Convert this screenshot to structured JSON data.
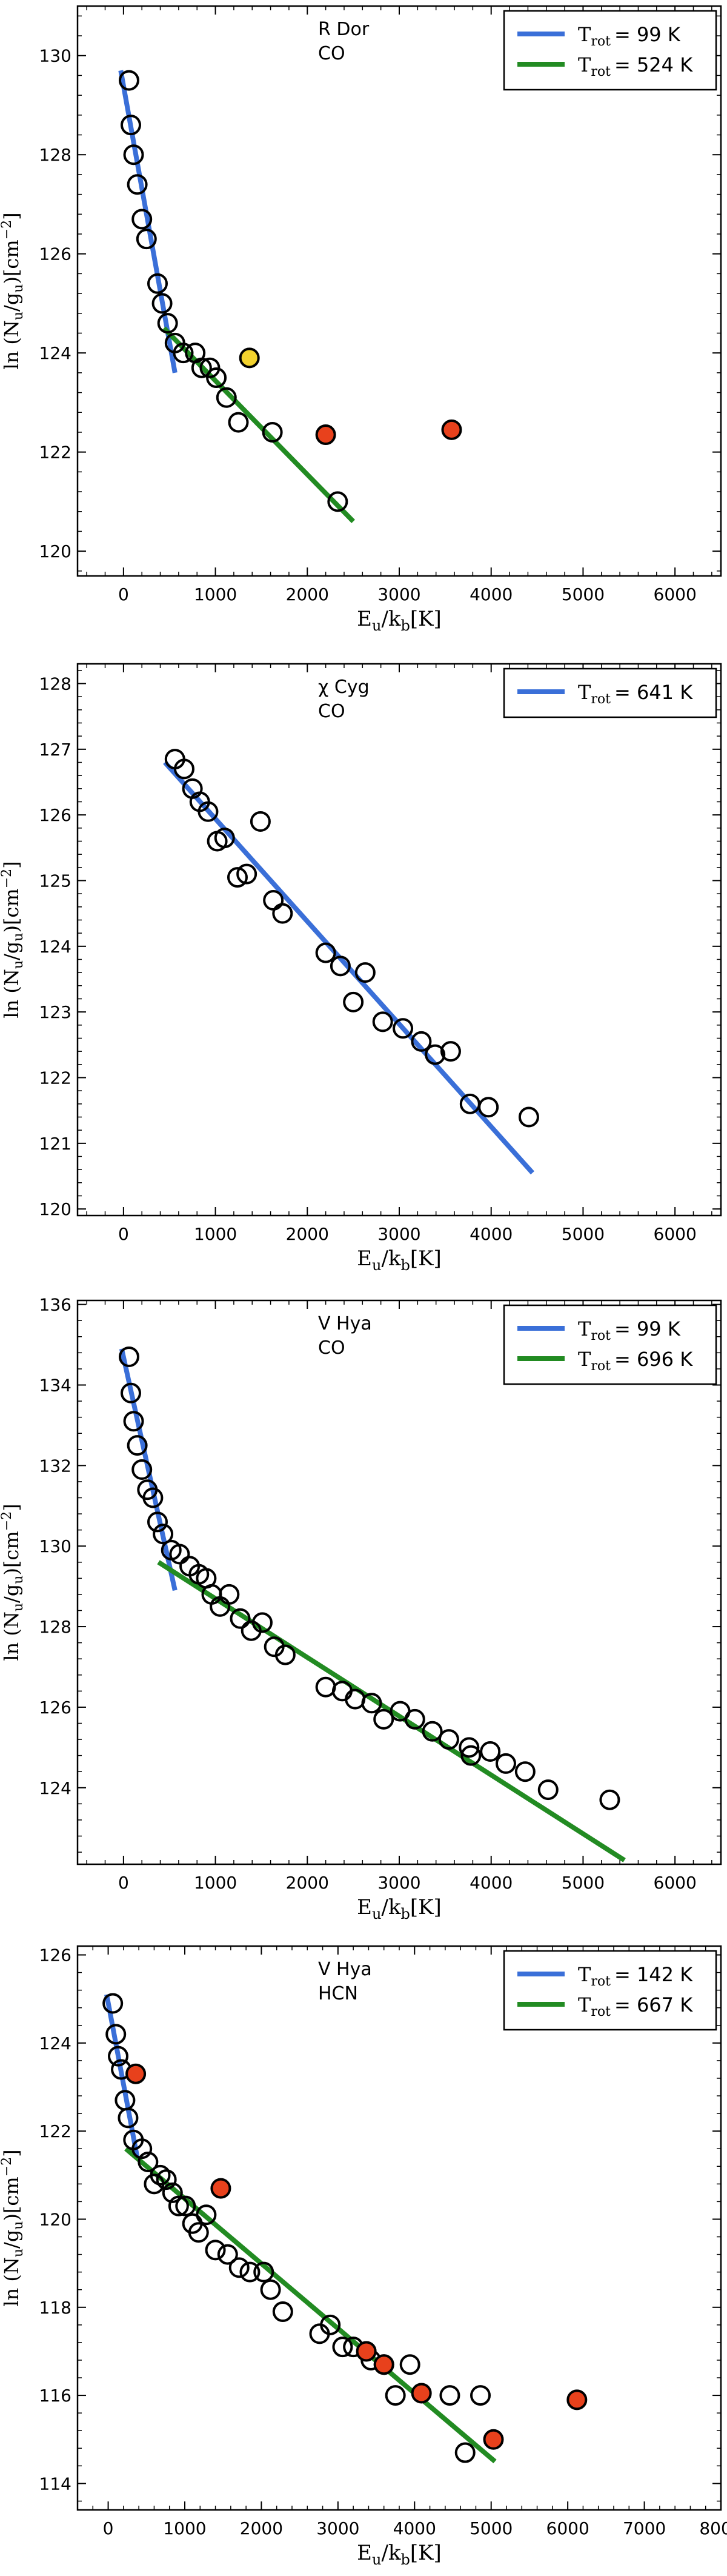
{
  "chart_data": [
    {
      "type": "scatter",
      "star": "R Dor",
      "molecule": "CO",
      "xlabel_main": "E",
      "xlabel_sub1": "u",
      "xlabel_mid": "/k",
      "xlabel_sub2": "b",
      "xlabel_unit": "[K]",
      "ylabel_prefix": "ln (N",
      "ylabel_sub1": "u",
      "ylabel_mid": "/g",
      "ylabel_sub2": "u",
      "ylabel_unit": ")[cm",
      "ylabel_sup": "−2",
      "ylabel_end": "]",
      "xlim": [
        -500,
        6500
      ],
      "ylim": [
        119.5,
        131
      ],
      "xticks": [
        0,
        1000,
        2000,
        3000,
        4000,
        5000,
        6000
      ],
      "yticks": [
        120,
        122,
        124,
        126,
        128,
        130
      ],
      "fits": [
        {
          "name": "T",
          "sub": "rot",
          "label": "= 99 K",
          "color": "#3a6fd8",
          "x": [
            -30,
            560
          ],
          "y": [
            129.7,
            123.6
          ]
        },
        {
          "name": "T",
          "sub": "rot",
          "label": "= 524 K",
          "color": "#228b22",
          "x": [
            440,
            2500
          ],
          "y": [
            124.5,
            120.6
          ]
        }
      ],
      "points": [
        {
          "x": 60,
          "y": 129.5
        },
        {
          "x": 80,
          "y": 128.6
        },
        {
          "x": 110,
          "y": 128.0
        },
        {
          "x": 150,
          "y": 127.4
        },
        {
          "x": 200,
          "y": 126.7
        },
        {
          "x": 250,
          "y": 126.3
        },
        {
          "x": 370,
          "y": 125.4
        },
        {
          "x": 420,
          "y": 125.0
        },
        {
          "x": 480,
          "y": 124.6
        },
        {
          "x": 560,
          "y": 124.2
        },
        {
          "x": 650,
          "y": 124.0
        },
        {
          "x": 780,
          "y": 124.0
        },
        {
          "x": 850,
          "y": 123.7
        },
        {
          "x": 940,
          "y": 123.7
        },
        {
          "x": 1010,
          "y": 123.5
        },
        {
          "x": 1120,
          "y": 123.1
        },
        {
          "x": 1250,
          "y": 122.6
        },
        {
          "x": 1620,
          "y": 122.4
        },
        {
          "x": 2330,
          "y": 121.0
        },
        {
          "x": 1370,
          "y": 123.9,
          "fill": "#f2d22e"
        },
        {
          "x": 2200,
          "y": 122.35,
          "fill": "#e8411c"
        },
        {
          "x": 3570,
          "y": 122.45,
          "fill": "#e8411c"
        }
      ]
    },
    {
      "type": "scatter",
      "star": "χ Cyg",
      "molecule": "CO",
      "xlabel_main": "E",
      "xlabel_sub1": "u",
      "xlabel_mid": "/k",
      "xlabel_sub2": "b",
      "xlabel_unit": "[K]",
      "ylabel_prefix": "ln (N",
      "ylabel_sub1": "u",
      "ylabel_mid": "/g",
      "ylabel_sub2": "u",
      "ylabel_unit": ")[cm",
      "ylabel_sup": "−2",
      "ylabel_end": "]",
      "xlim": [
        -500,
        6500
      ],
      "ylim": [
        119.9,
        128.3
      ],
      "xticks": [
        0,
        1000,
        2000,
        3000,
        4000,
        5000,
        6000
      ],
      "yticks": [
        120,
        121,
        122,
        123,
        124,
        125,
        126,
        127,
        128
      ],
      "fits": [
        {
          "name": "T",
          "sub": "rot",
          "label": "= 641 K",
          "color": "#3a6fd8",
          "x": [
            450,
            4450
          ],
          "y": [
            126.8,
            120.55
          ]
        }
      ],
      "points": [
        {
          "x": 560,
          "y": 126.85
        },
        {
          "x": 660,
          "y": 126.7
        },
        {
          "x": 750,
          "y": 126.4
        },
        {
          "x": 830,
          "y": 126.2
        },
        {
          "x": 920,
          "y": 126.05
        },
        {
          "x": 1020,
          "y": 125.6
        },
        {
          "x": 1100,
          "y": 125.65
        },
        {
          "x": 1240,
          "y": 125.05
        },
        {
          "x": 1340,
          "y": 125.1
        },
        {
          "x": 1490,
          "y": 125.9
        },
        {
          "x": 1630,
          "y": 124.7
        },
        {
          "x": 1730,
          "y": 124.5
        },
        {
          "x": 2200,
          "y": 123.9
        },
        {
          "x": 2360,
          "y": 123.7
        },
        {
          "x": 2500,
          "y": 123.15
        },
        {
          "x": 2630,
          "y": 123.6
        },
        {
          "x": 2820,
          "y": 122.85
        },
        {
          "x": 3040,
          "y": 122.75
        },
        {
          "x": 3240,
          "y": 122.55
        },
        {
          "x": 3390,
          "y": 122.35
        },
        {
          "x": 3560,
          "y": 122.4
        },
        {
          "x": 3770,
          "y": 121.6
        },
        {
          "x": 3970,
          "y": 121.55
        },
        {
          "x": 4410,
          "y": 121.4
        }
      ]
    },
    {
      "type": "scatter",
      "star": "V Hya",
      "molecule": "CO",
      "xlabel_main": "E",
      "xlabel_sub1": "u",
      "xlabel_mid": "/k",
      "xlabel_sub2": "b",
      "xlabel_unit": "[K]",
      "ylabel_prefix": "ln (N",
      "ylabel_sub1": "u",
      "ylabel_mid": "/g",
      "ylabel_sub2": "u",
      "ylabel_unit": ")[cm",
      "ylabel_sup": "−2",
      "ylabel_end": "]",
      "xlim": [
        -500,
        6500
      ],
      "ylim": [
        122.1,
        136.1
      ],
      "xticks": [
        0,
        1000,
        2000,
        3000,
        4000,
        5000,
        6000
      ],
      "yticks": [
        124,
        126,
        128,
        130,
        132,
        134,
        136
      ],
      "fits": [
        {
          "name": "T",
          "sub": "rot",
          "label": "= 99 K",
          "color": "#3a6fd8",
          "x": [
            -20,
            560
          ],
          "y": [
            134.9,
            128.9
          ]
        },
        {
          "name": "T",
          "sub": "rot",
          "label": "= 696 K",
          "color": "#228b22",
          "x": [
            380,
            5450
          ],
          "y": [
            129.6,
            122.2
          ]
        }
      ],
      "points": [
        {
          "x": 60,
          "y": 134.7
        },
        {
          "x": 80,
          "y": 133.8
        },
        {
          "x": 110,
          "y": 133.1
        },
        {
          "x": 150,
          "y": 132.5
        },
        {
          "x": 200,
          "y": 131.9
        },
        {
          "x": 260,
          "y": 131.4
        },
        {
          "x": 320,
          "y": 131.2
        },
        {
          "x": 370,
          "y": 130.6
        },
        {
          "x": 430,
          "y": 130.3
        },
        {
          "x": 520,
          "y": 129.9
        },
        {
          "x": 610,
          "y": 129.8
        },
        {
          "x": 720,
          "y": 129.5
        },
        {
          "x": 820,
          "y": 129.3
        },
        {
          "x": 900,
          "y": 129.2
        },
        {
          "x": 960,
          "y": 128.8
        },
        {
          "x": 1050,
          "y": 128.5
        },
        {
          "x": 1150,
          "y": 128.8
        },
        {
          "x": 1270,
          "y": 128.2
        },
        {
          "x": 1390,
          "y": 127.9
        },
        {
          "x": 1510,
          "y": 128.1
        },
        {
          "x": 1640,
          "y": 127.5
        },
        {
          "x": 1760,
          "y": 127.3
        },
        {
          "x": 2200,
          "y": 126.5
        },
        {
          "x": 2380,
          "y": 126.4
        },
        {
          "x": 2520,
          "y": 126.2
        },
        {
          "x": 2700,
          "y": 126.1
        },
        {
          "x": 2830,
          "y": 125.7
        },
        {
          "x": 3010,
          "y": 125.9
        },
        {
          "x": 3170,
          "y": 125.7
        },
        {
          "x": 3360,
          "y": 125.4
        },
        {
          "x": 3540,
          "y": 125.2
        },
        {
          "x": 3780,
          "y": 124.8
        },
        {
          "x": 3760,
          "y": 125.0
        },
        {
          "x": 3990,
          "y": 124.9
        },
        {
          "x": 4160,
          "y": 124.6
        },
        {
          "x": 4370,
          "y": 124.4
        },
        {
          "x": 4620,
          "y": 123.95
        },
        {
          "x": 5290,
          "y": 123.7
        }
      ]
    },
    {
      "type": "scatter",
      "star": "V Hya",
      "molecule": "HCN",
      "xlabel_main": "E",
      "xlabel_sub1": "u",
      "xlabel_mid": "/k",
      "xlabel_sub2": "b",
      "xlabel_unit": "[K]",
      "ylabel_prefix": "ln (N",
      "ylabel_sub1": "u",
      "ylabel_mid": "/g",
      "ylabel_sub2": "u",
      "ylabel_unit": ")[cm",
      "ylabel_sup": "−2",
      "ylabel_end": "]",
      "xlim": [
        -400,
        8000
      ],
      "ylim": [
        113.4,
        126.2
      ],
      "xticks": [
        0,
        1000,
        2000,
        3000,
        4000,
        5000,
        6000,
        7000,
        8000
      ],
      "yticks": [
        114,
        116,
        118,
        120,
        122,
        124,
        126
      ],
      "fits": [
        {
          "name": "T",
          "sub": "rot",
          "label": "= 142 K",
          "color": "#3a6fd8",
          "x": [
            -20,
            380
          ],
          "y": [
            125.1,
            121.4
          ]
        },
        {
          "name": "T",
          "sub": "rot",
          "label": "= 667 K",
          "color": "#228b22",
          "x": [
            230,
            5050
          ],
          "y": [
            121.6,
            114.5
          ]
        }
      ],
      "points": [
        {
          "x": 60,
          "y": 124.9
        },
        {
          "x": 100,
          "y": 124.2
        },
        {
          "x": 130,
          "y": 123.7
        },
        {
          "x": 170,
          "y": 123.4
        },
        {
          "x": 220,
          "y": 122.7
        },
        {
          "x": 260,
          "y": 122.3
        },
        {
          "x": 330,
          "y": 121.8
        },
        {
          "x": 440,
          "y": 121.6
        },
        {
          "x": 520,
          "y": 121.3
        },
        {
          "x": 600,
          "y": 120.8
        },
        {
          "x": 680,
          "y": 121.0
        },
        {
          "x": 760,
          "y": 120.9
        },
        {
          "x": 840,
          "y": 120.6
        },
        {
          "x": 920,
          "y": 120.3
        },
        {
          "x": 1010,
          "y": 120.3
        },
        {
          "x": 1100,
          "y": 119.9
        },
        {
          "x": 1180,
          "y": 119.7
        },
        {
          "x": 1280,
          "y": 120.1
        },
        {
          "x": 1400,
          "y": 119.3
        },
        {
          "x": 1560,
          "y": 119.2
        },
        {
          "x": 1710,
          "y": 118.9
        },
        {
          "x": 1850,
          "y": 118.8
        },
        {
          "x": 2030,
          "y": 118.8
        },
        {
          "x": 2120,
          "y": 118.4
        },
        {
          "x": 2280,
          "y": 117.9
        },
        {
          "x": 2760,
          "y": 117.4
        },
        {
          "x": 2900,
          "y": 117.6
        },
        {
          "x": 3060,
          "y": 117.1
        },
        {
          "x": 3200,
          "y": 117.1
        },
        {
          "x": 3430,
          "y": 116.8
        },
        {
          "x": 3600,
          "y": 116.7
        },
        {
          "x": 3750,
          "y": 116.0
        },
        {
          "x": 3940,
          "y": 116.7
        },
        {
          "x": 4460,
          "y": 116.0
        },
        {
          "x": 4660,
          "y": 114.7
        },
        {
          "x": 4860,
          "y": 116.0
        },
        {
          "x": 360,
          "y": 123.3,
          "fill": "#e8411c"
        },
        {
          "x": 1470,
          "y": 120.7,
          "fill": "#e8411c"
        },
        {
          "x": 3370,
          "y": 117.0,
          "fill": "#e8411c"
        },
        {
          "x": 3600,
          "y": 116.7,
          "fill": "#e8411c"
        },
        {
          "x": 4090,
          "y": 116.05,
          "fill": "#e8411c"
        },
        {
          "x": 5030,
          "y": 115.0,
          "fill": "#e8411c"
        },
        {
          "x": 6120,
          "y": 115.9,
          "fill": "#e8411c"
        }
      ]
    }
  ]
}
